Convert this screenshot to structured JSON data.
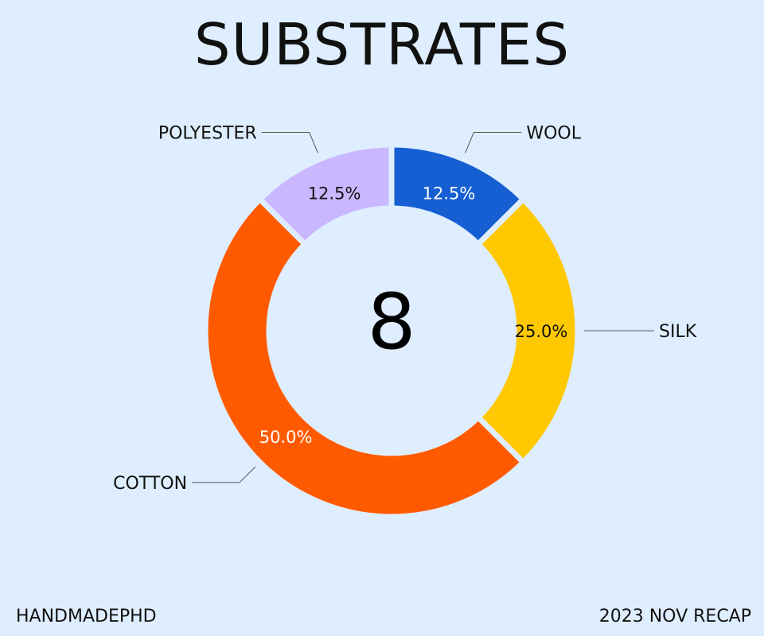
{
  "header": {
    "title": "SUBSTRATES"
  },
  "footer": {
    "brand": "HANDMADEPHD",
    "period": "2023 NOV RECAP"
  },
  "chart_data": {
    "type": "pie",
    "title": "SUBSTRATES",
    "center_text": "8",
    "categories": [
      "WOOL",
      "SILK",
      "COTTON",
      "POLYESTER"
    ],
    "values": [
      1,
      2,
      4,
      1
    ],
    "percent_labels": [
      "12.5%",
      "25.0%",
      "50.0%",
      "12.5%"
    ],
    "colors": [
      "#155fd3",
      "#ffc800",
      "#ff5a00",
      "#c9b8ff"
    ],
    "percent_label_colors": [
      "#ffffff",
      "#111111",
      "#ffffff",
      "#111111"
    ],
    "start_angle_deg": 90,
    "direction": "clockwise"
  }
}
